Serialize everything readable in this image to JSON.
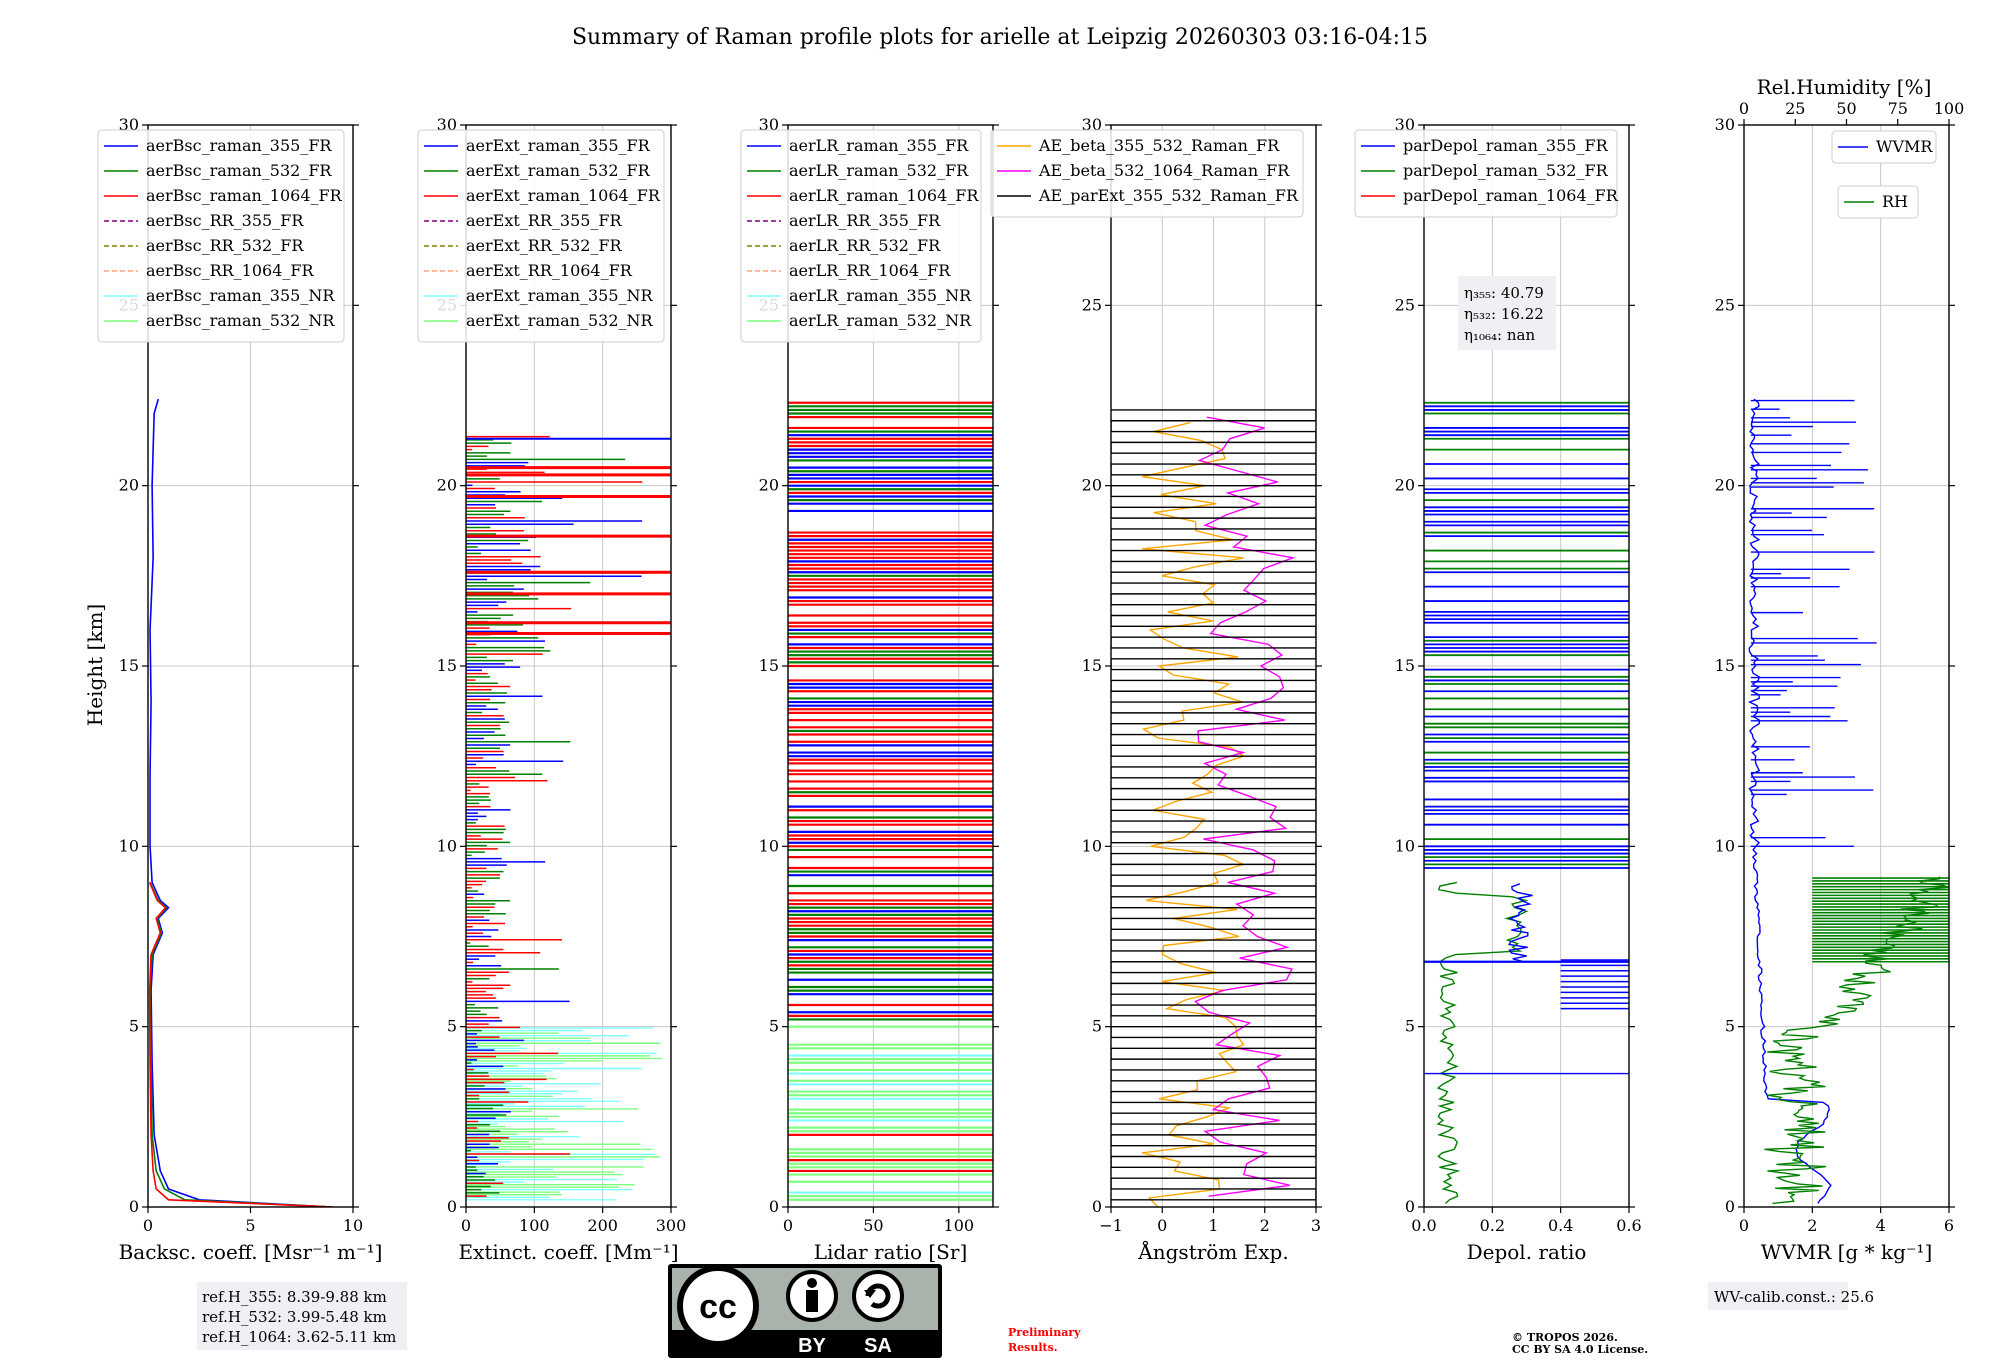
{
  "figure": {
    "title": "Summary of Raman profile plots for arielle at Leipzig 20260303 03:16-04:15",
    "ylabel": "Height [km]",
    "ylim": [
      0,
      30
    ],
    "yticks": [
      "0",
      "5",
      "10",
      "15",
      "20",
      "25",
      "30"
    ]
  },
  "chart_data": [
    {
      "id": "bsc",
      "type": "line",
      "xlabel": "Backsc. coeff. [Msr⁻¹ m⁻¹]",
      "xlim": [
        0,
        10
      ],
      "xticks": [
        0,
        5,
        10
      ],
      "legend": [
        "aerBsc_raman_355_FR",
        "aerBsc_raman_532_FR",
        "aerBsc_raman_1064_FR",
        "aerBsc_RR_355_FR",
        "aerBsc_RR_532_FR",
        "aerBsc_RR_1064_FR",
        "aerBsc_raman_355_NR",
        "aerBsc_raman_532_NR"
      ],
      "series": [
        {
          "name": "aerBsc_raman_355_FR",
          "h": [
            0,
            0.2,
            0.5,
            1,
            2,
            4,
            6,
            7,
            7.6,
            8,
            8.3,
            8.5,
            9,
            10,
            12,
            14,
            16,
            18,
            20,
            22,
            22.4
          ],
          "x": [
            9,
            2.5,
            1,
            0.6,
            0.3,
            0.2,
            0.15,
            0.25,
            0.7,
            0.5,
            1,
            0.6,
            0.2,
            0.1,
            0.1,
            0.15,
            0.1,
            0.25,
            0.2,
            0.3,
            0.5
          ]
        },
        {
          "name": "aerBsc_raman_532_FR",
          "h": [
            0,
            0.2,
            0.5,
            1,
            2,
            4,
            6,
            7,
            7.6,
            8,
            8.3,
            8.5,
            9
          ],
          "x": [
            9,
            1.8,
            0.8,
            0.4,
            0.2,
            0.15,
            0.1,
            0.2,
            0.65,
            0.45,
            0.9,
            0.5,
            0.1
          ]
        },
        {
          "name": "aerBsc_raman_1064_FR",
          "h": [
            0,
            0.2,
            0.5,
            1,
            2,
            4,
            6,
            7,
            7.6,
            8,
            8.3,
            8.5,
            9
          ],
          "x": [
            9,
            1,
            0.4,
            0.25,
            0.15,
            0.1,
            0.08,
            0.15,
            0.6,
            0.4,
            0.85,
            0.45,
            0.08
          ]
        }
      ],
      "ref_box": [
        "ref.H_355: 8.39-9.88 km",
        "ref.H_532: 3.99-5.48 km",
        "ref.H_1064: 3.62-5.11 km"
      ]
    },
    {
      "id": "ext",
      "type": "line",
      "xlabel": "Extinct. coeff. [Mm⁻¹]",
      "xlim": [
        0,
        300
      ],
      "xticks": [
        0,
        100,
        200,
        300
      ],
      "legend": [
        "aerExt_raman_355_FR",
        "aerExt_raman_532_FR",
        "aerExt_raman_1064_FR",
        "aerExt_RR_355_FR",
        "aerExt_RR_532_FR",
        "aerExt_RR_1064_FR",
        "aerExt_raman_355_NR",
        "aerExt_raman_532_NR"
      ]
    },
    {
      "id": "lr",
      "type": "line",
      "xlabel": "Lidar ratio [Sr]",
      "xlim": [
        0,
        120
      ],
      "xticks": [
        0,
        50,
        100
      ],
      "legend": [
        "aerLR_raman_355_FR",
        "aerLR_raman_532_FR",
        "aerLR_raman_1064_FR",
        "aerLR_RR_355_FR",
        "aerLR_RR_532_FR",
        "aerLR_RR_1064_FR",
        "aerLR_raman_355_NR",
        "aerLR_raman_532_NR"
      ]
    },
    {
      "id": "ae",
      "type": "line",
      "xlabel": "Ångström Exp.",
      "xlim": [
        -1,
        3
      ],
      "xticks": [
        -1,
        0,
        1,
        2,
        3
      ],
      "legend": [
        "AE_beta_355_532_Raman_FR",
        "AE_beta_532_1064_Raman_FR",
        "AE_parExt_355_532_Raman_FR"
      ]
    },
    {
      "id": "dep",
      "type": "line",
      "xlabel": "Depol. ratio",
      "xlim": [
        0,
        0.6
      ],
      "xticks": [
        "0.0",
        "0.2",
        "0.4",
        "0.6"
      ],
      "legend": [
        "parDepol_raman_355_FR",
        "parDepol_raman_532_FR",
        "parDepol_raman_1064_FR"
      ],
      "eta_box": {
        "l355": "η₃₅₅: 40.79",
        "l532": "η₅₃₂: 16.22",
        "l1064": "η₁₀₆₄: nan"
      }
    },
    {
      "id": "wv",
      "type": "line",
      "xlabel": "WVMR [g * kg⁻¹]",
      "xlim": [
        0,
        6
      ],
      "xticks": [
        0,
        2,
        4,
        6
      ],
      "top_label": "Rel.Humidity [%]",
      "top_xlim": [
        0,
        100
      ],
      "top_ticks": [
        0,
        25,
        50,
        75,
        100
      ],
      "legend": [
        "WVMR",
        "RH"
      ],
      "calib": "WV-calib.const.: 25.6"
    }
  ],
  "colors": {
    "c355": "#0000ff",
    "c532": "#008000",
    "c1064": "#ff0000",
    "rr355": "#800080",
    "rr532": "#808000",
    "rr1064": "#ffa07a",
    "nr355": "#7fffff",
    "nr532": "#7fff7f",
    "ae1": "#ffa500",
    "ae2": "#ff00ff",
    "ae3": "#000000"
  },
  "footer": {
    "license_by": "BY",
    "license_sa": "SA",
    "license_cc": "cc",
    "prelim1": "Preliminary",
    "prelim2": "Results.",
    "copy1": "© TROPOS 2026.",
    "copy2": "CC BY SA 4.0 License."
  }
}
